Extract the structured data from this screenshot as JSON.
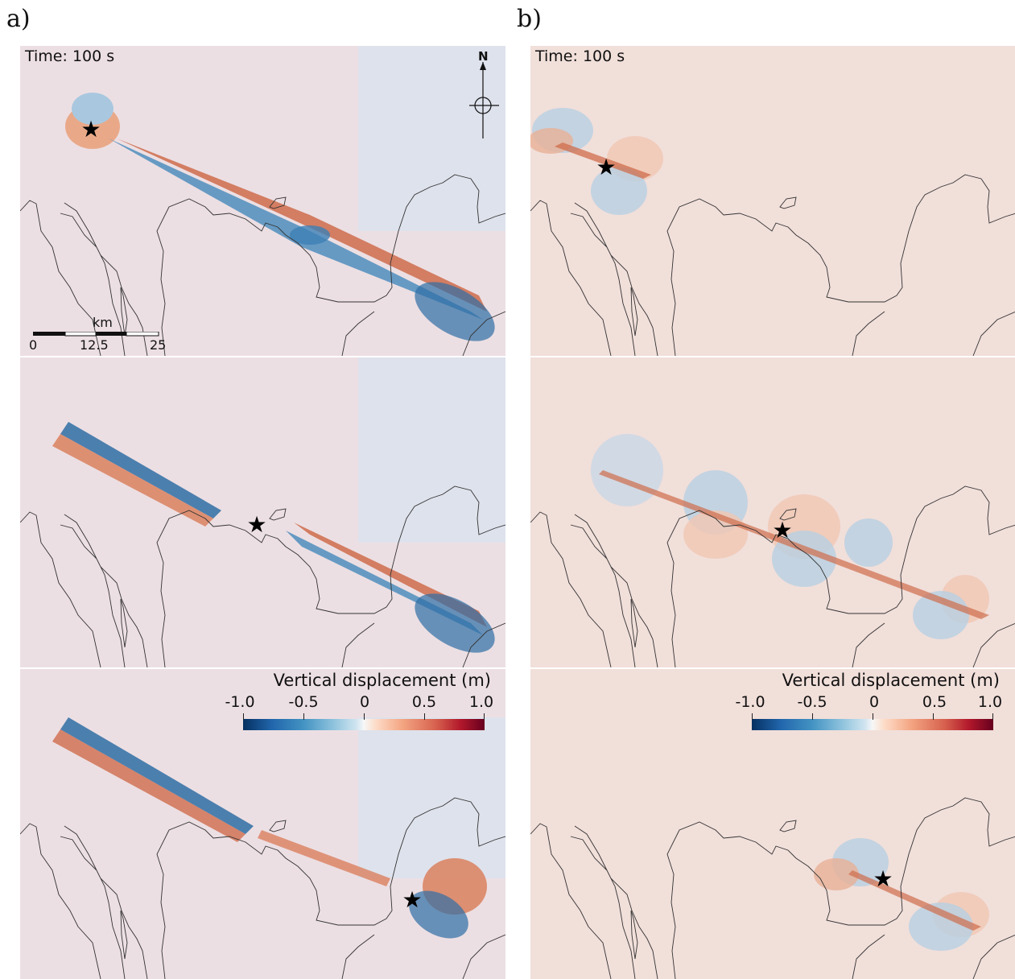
{
  "column_labels": {
    "a": "a)",
    "b": "b)"
  },
  "time_label": "Time: 100 s",
  "north_label": "N",
  "scale_bar": {
    "unit": "km",
    "ticks": [
      "0",
      "12.5",
      "25"
    ]
  },
  "legend": {
    "title": "Vertical displacement (m)",
    "ticks": [
      "-1.0",
      "-0.5",
      "0",
      "0.5",
      "1.0"
    ],
    "colormap": "blue-white-red diverging",
    "colors": {
      "min": "#053061",
      "zero": "#f7f7f7",
      "max": "#67001f"
    }
  },
  "icons": [
    "star-icon",
    "north-arrow-icon"
  ]
}
